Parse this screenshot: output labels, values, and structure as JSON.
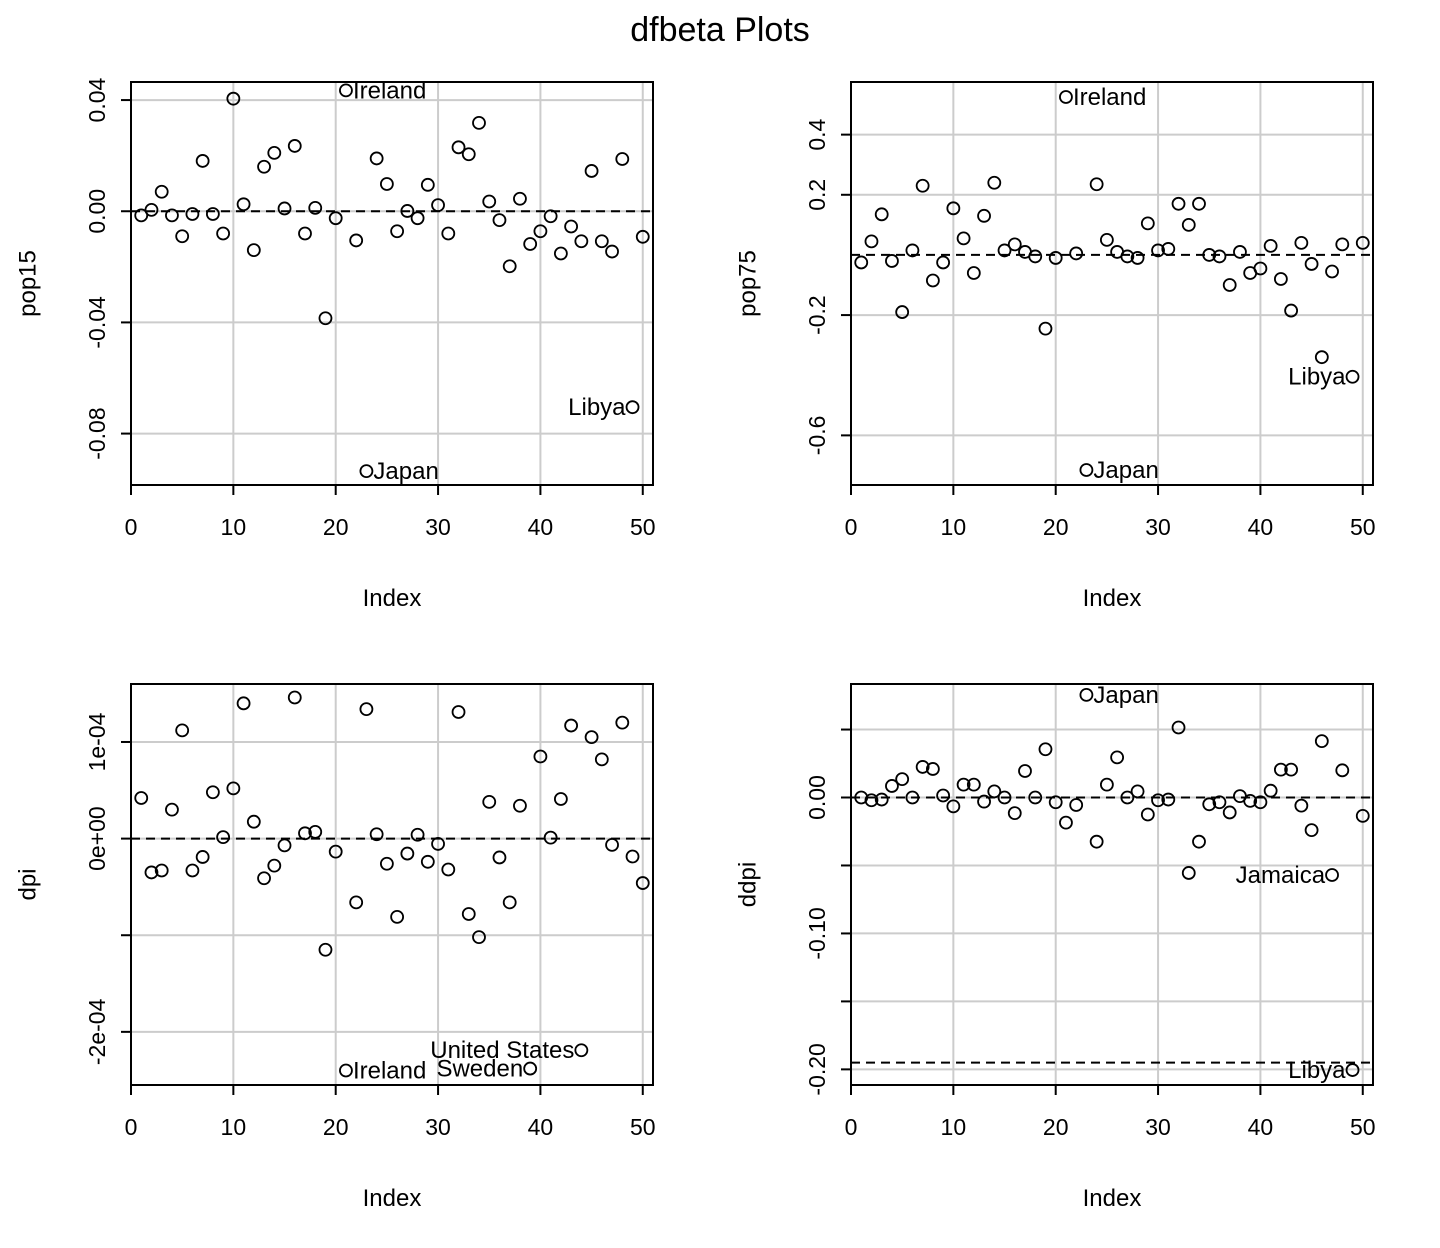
{
  "title": "dfbeta Plots",
  "chart_data": [
    {
      "type": "scatter",
      "title": "",
      "xlabel": "Index",
      "ylabel": "pop15",
      "xlim": [
        0,
        51
      ],
      "ylim": [
        -0.0985,
        0.0465
      ],
      "xticks": [
        0,
        10,
        20,
        30,
        40,
        50
      ],
      "yticks": [
        0.04,
        0.0,
        -0.04,
        -0.08
      ],
      "ytick_labels": [
        "0.04",
        "0.00",
        "-0.04",
        "-0.08"
      ],
      "grid": true,
      "reference_lines": [
        0
      ],
      "x": [
        1,
        2,
        3,
        4,
        5,
        6,
        7,
        8,
        9,
        10,
        11,
        12,
        13,
        14,
        15,
        16,
        17,
        18,
        19,
        20,
        21,
        22,
        23,
        24,
        25,
        26,
        27,
        28,
        29,
        30,
        31,
        32,
        33,
        34,
        35,
        36,
        37,
        38,
        39,
        40,
        41,
        42,
        43,
        44,
        45,
        46,
        47,
        48,
        49,
        50
      ],
      "y": [
        -0.0015,
        0.0005,
        0.007,
        -0.0015,
        -0.009,
        -0.001,
        0.0181,
        -0.001,
        -0.008,
        0.0405,
        0.0025,
        -0.014,
        0.016,
        0.021,
        0.001,
        0.0235,
        -0.008,
        0.0012,
        -0.0385,
        -0.0025,
        0.0435,
        -0.0105,
        -0.0935,
        0.019,
        0.0098,
        -0.0072,
        0.0001,
        -0.0025,
        0.0095,
        0.0022,
        -0.008,
        0.023,
        0.0205,
        0.0318,
        0.0035,
        -0.0032,
        -0.0198,
        0.0045,
        -0.0118,
        -0.0072,
        -0.0018,
        -0.0152,
        -0.0055,
        -0.0108,
        0.0145,
        -0.0108,
        -0.0145,
        0.0188,
        -0.0705,
        -0.0092
      ],
      "annotations": [
        {
          "label": "Ireland",
          "x": 21,
          "y": 0.0435
        },
        {
          "label": "Japan",
          "x": 23,
          "y": -0.0935
        },
        {
          "label": "Libya",
          "x": 49,
          "y": -0.0705
        }
      ]
    },
    {
      "type": "scatter",
      "title": "",
      "xlabel": "Index",
      "ylabel": "pop75",
      "xlim": [
        0,
        51
      ],
      "ylim": [
        -0.765,
        0.575
      ],
      "xticks": [
        0,
        10,
        20,
        30,
        40,
        50
      ],
      "yticks": [
        0.4,
        0.2,
        -0.2,
        -0.6
      ],
      "ytick_labels": [
        "0.4",
        "0.2",
        "-0.2",
        "-0.6"
      ],
      "grid": true,
      "reference_lines": [
        0
      ],
      "x": [
        1,
        2,
        3,
        4,
        5,
        6,
        7,
        8,
        9,
        10,
        11,
        12,
        13,
        14,
        15,
        16,
        17,
        18,
        19,
        20,
        21,
        22,
        23,
        24,
        25,
        26,
        27,
        28,
        29,
        30,
        31,
        32,
        33,
        34,
        35,
        36,
        37,
        38,
        39,
        40,
        41,
        42,
        43,
        44,
        45,
        46,
        47,
        48,
        49,
        50
      ],
      "y": [
        -0.025,
        0.045,
        0.135,
        -0.02,
        -0.19,
        0.015,
        0.23,
        -0.085,
        -0.025,
        0.155,
        0.055,
        -0.06,
        0.13,
        0.24,
        0.015,
        0.035,
        0.01,
        -0.005,
        -0.245,
        -0.01,
        0.525,
        0.005,
        -0.715,
        0.235,
        0.05,
        0.01,
        -0.005,
        -0.01,
        0.105,
        0.015,
        0.02,
        0.17,
        0.1,
        0.17,
        0.0,
        -0.005,
        -0.1,
        0.01,
        -0.06,
        -0.045,
        0.03,
        -0.08,
        -0.185,
        0.04,
        -0.03,
        -0.34,
        -0.055,
        0.035,
        -0.405,
        0.04
      ],
      "annotations": [
        {
          "label": "Ireland",
          "x": 21,
          "y": 0.525
        },
        {
          "label": "Japan",
          "x": 23,
          "y": -0.715
        },
        {
          "label": "Libya",
          "x": 49,
          "y": -0.405
        }
      ]
    },
    {
      "type": "scatter",
      "title": "",
      "xlabel": "Index",
      "ylabel": "dpi",
      "xlim": [
        0,
        51
      ],
      "ylim": [
        -0.000255,
        0.00016
      ],
      "xticks": [
        0,
        10,
        20,
        30,
        40,
        50
      ],
      "yticks": [
        0.0001,
        0.0,
        -0.0002
      ],
      "ytick_labels": [
        "1e-04",
        "0e+00",
        "-2e-04"
      ],
      "minor_yticks": [
        -0.0001
      ],
      "grid": true,
      "reference_lines": [
        0
      ],
      "x": [
        1,
        2,
        3,
        4,
        5,
        6,
        7,
        8,
        9,
        10,
        11,
        12,
        13,
        14,
        15,
        16,
        17,
        18,
        19,
        20,
        21,
        22,
        23,
        24,
        25,
        26,
        27,
        28,
        29,
        30,
        31,
        32,
        33,
        34,
        35,
        36,
        37,
        38,
        39,
        40,
        41,
        42,
        43,
        44,
        45,
        46,
        47,
        48,
        49,
        50
      ],
      "y": [
        4.2e-05,
        -3.5e-05,
        -3.3e-05,
        3e-05,
        0.000112,
        -3.3e-05,
        -1.9e-05,
        4.8e-05,
        1.5e-06,
        5.2e-05,
        0.00014,
        1.75e-05,
        -4.1e-05,
        -2.8e-05,
        -7e-06,
        0.000146,
        5.5e-06,
        7e-06,
        -0.000115,
        -1.35e-05,
        -0.00024,
        -6.6e-05,
        0.000134,
        4.5e-06,
        -2.6e-05,
        -8.1e-05,
        -1.55e-05,
        4e-06,
        -2.4e-05,
        -5.5e-06,
        -3.2e-05,
        0.000131,
        -7.8e-05,
        -0.000102,
        3.8e-05,
        -1.95e-05,
        -6.6e-05,
        3.4e-05,
        -0.000238,
        8.5e-05,
        1e-06,
        4.1e-05,
        0.000117,
        -0.000219,
        0.000105,
        8.2e-05,
        -6.5e-06,
        0.00012,
        -1.85e-05,
        -4.6e-05
      ],
      "annotations": [
        {
          "label": "Ireland",
          "x": 21,
          "y": -0.00024
        },
        {
          "label": "Sweden",
          "x": 39,
          "y": -0.000238
        },
        {
          "label": "United States",
          "x": 44,
          "y": -0.000219
        }
      ]
    },
    {
      "type": "scatter",
      "title": "",
      "xlabel": "Index",
      "ylabel": "ddpi",
      "xlim": [
        0,
        51
      ],
      "ylim": [
        -0.2115,
        0.0835
      ],
      "xticks": [
        0,
        10,
        20,
        30,
        40,
        50
      ],
      "yticks": [
        0.0,
        -0.1,
        -0.2
      ],
      "ytick_labels": [
        "0.00",
        "-0.10",
        "-0.20"
      ],
      "minor_yticks": [
        0.05,
        -0.05,
        -0.15
      ],
      "grid": true,
      "reference_lines": [
        0,
        -0.195
      ],
      "x": [
        1,
        2,
        3,
        4,
        5,
        6,
        7,
        8,
        9,
        10,
        11,
        12,
        13,
        14,
        15,
        16,
        17,
        18,
        19,
        20,
        21,
        22,
        23,
        24,
        25,
        26,
        27,
        28,
        29,
        30,
        31,
        32,
        33,
        34,
        35,
        36,
        37,
        38,
        39,
        40,
        41,
        42,
        43,
        44,
        45,
        46,
        47,
        48,
        49,
        50
      ],
      "y": [
        0.0,
        -0.002,
        -0.0015,
        0.0085,
        0.0135,
        0.0,
        0.0225,
        0.021,
        0.0015,
        -0.0065,
        0.0095,
        0.0095,
        -0.003,
        0.0045,
        0.0,
        -0.0115,
        0.0195,
        0.0,
        0.0355,
        -0.0035,
        -0.0185,
        -0.0055,
        0.0755,
        -0.0325,
        0.0095,
        0.0295,
        0.0,
        0.0045,
        -0.0125,
        -0.002,
        -0.0015,
        0.0515,
        -0.0555,
        -0.0325,
        -0.005,
        -0.0035,
        -0.011,
        0.001,
        -0.0025,
        -0.0035,
        0.005,
        0.0205,
        0.0205,
        -0.006,
        -0.024,
        0.0415,
        -0.057,
        0.02,
        -0.2005,
        -0.0135
      ],
      "annotations": [
        {
          "label": "Japan",
          "x": 23,
          "y": 0.0755
        },
        {
          "label": "Jamaica",
          "x": 47,
          "y": -0.057
        },
        {
          "label": "Libya",
          "x": 49,
          "y": -0.2005
        }
      ]
    }
  ]
}
